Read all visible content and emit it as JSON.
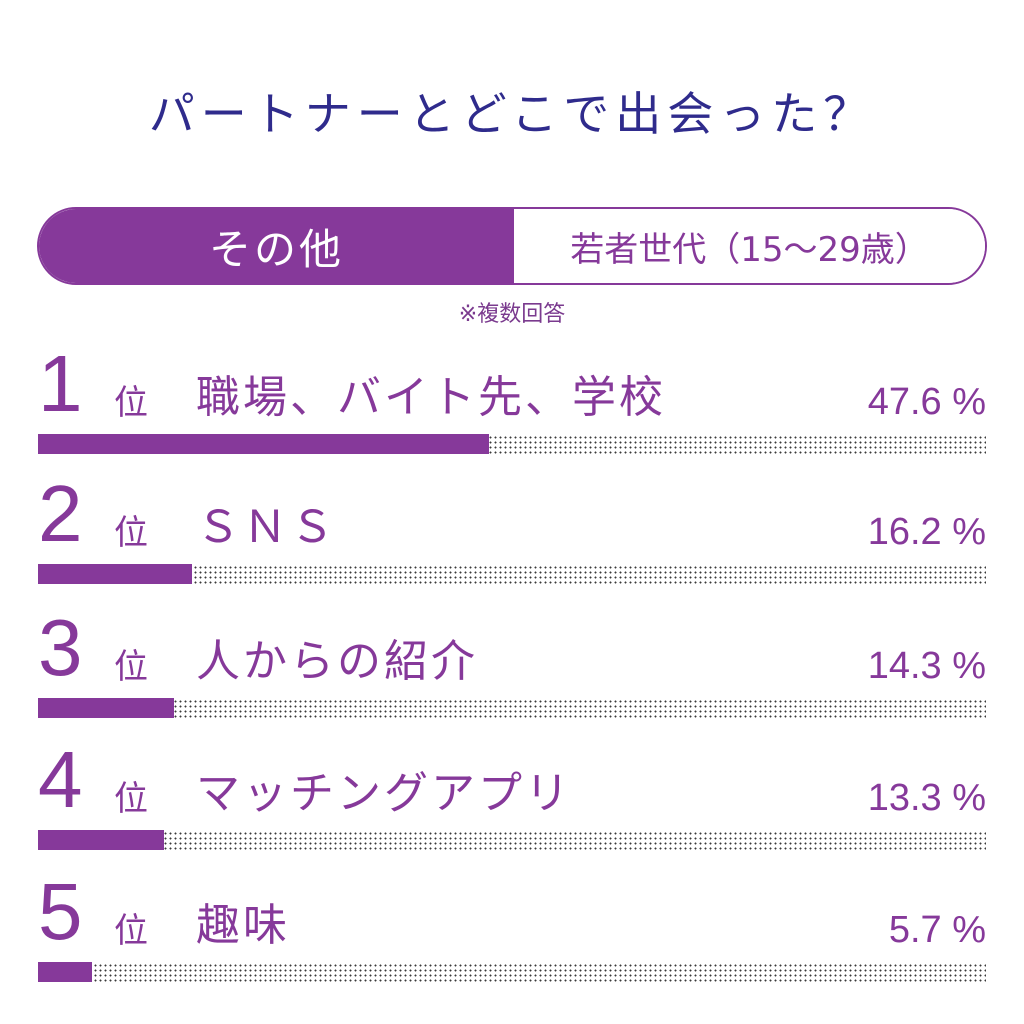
{
  "title": "パートナーとどこで出会った？",
  "tabs": {
    "active": "その他",
    "inactive": "若者世代（15～29歳）"
  },
  "note": "※複数回答",
  "rank_suffix": "位",
  "unit": "%",
  "colors": {
    "accent": "#86399a",
    "title": "#2f2b8c"
  },
  "chart_data": {
    "type": "bar",
    "title": "パートナーとどこで出会った？",
    "categories": [
      "職場、バイト先、学校",
      "ＳＮＳ",
      "人からの紹介",
      "マッチングアプリ",
      "趣味"
    ],
    "ranks": [
      "1",
      "2",
      "3",
      "4",
      "5"
    ],
    "values": [
      47.6,
      16.2,
      14.3,
      13.3,
      5.7
    ],
    "value_labels": [
      "47.6 %",
      "16.2 %",
      "14.3 %",
      "13.3 %",
      "5.7 %"
    ],
    "xlim": [
      0,
      100
    ],
    "orientation": "horizontal",
    "grid": false
  }
}
